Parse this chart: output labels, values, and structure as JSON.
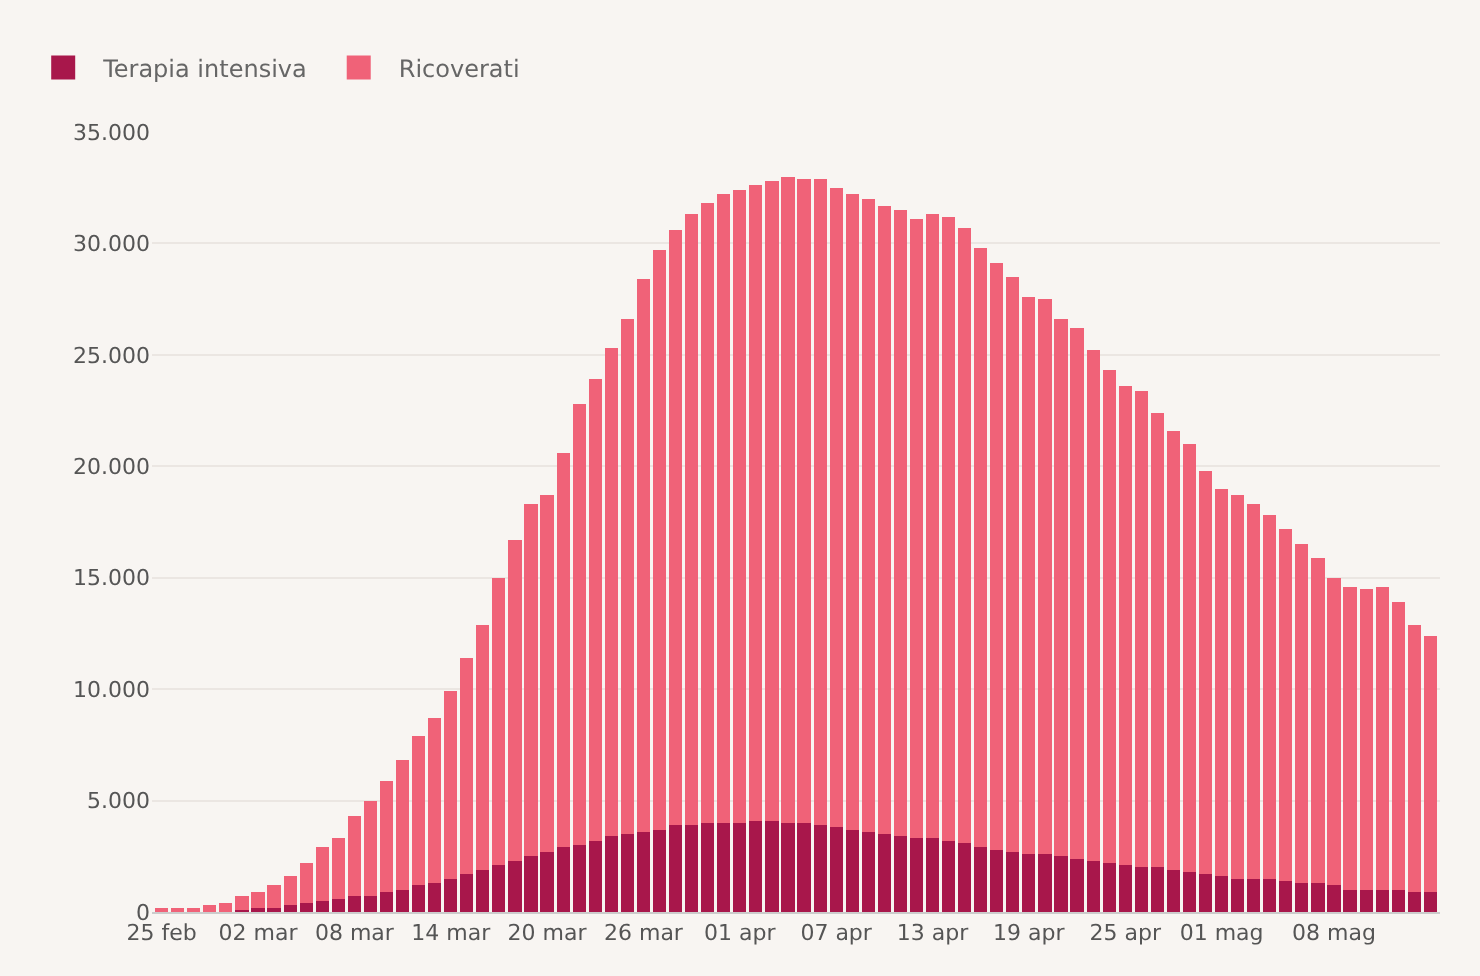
{
  "chart_data": {
    "type": "bar",
    "stacked": true,
    "categories": [
      "25 feb",
      null,
      null,
      null,
      null,
      null,
      "02 mar",
      null,
      null,
      null,
      null,
      null,
      "08 mar",
      null,
      null,
      null,
      null,
      null,
      "14 mar",
      null,
      null,
      null,
      null,
      null,
      "20 mar",
      null,
      null,
      null,
      null,
      null,
      "26 mar",
      null,
      null,
      null,
      null,
      null,
      "01 apr",
      null,
      null,
      null,
      null,
      null,
      "07 apr",
      null,
      null,
      null,
      null,
      null,
      "13 apr",
      null,
      null,
      null,
      null,
      null,
      "19 apr",
      null,
      null,
      null,
      null,
      null,
      "25 apr",
      null,
      null,
      null,
      null,
      null,
      "01 mag",
      null,
      null,
      null,
      null,
      null,
      null,
      "08 mag",
      null,
      null,
      null,
      null,
      null,
      null
    ],
    "series": [
      {
        "name": "Terapia intensiva",
        "color": "#a8174b",
        "values": [
          null,
          null,
          null,
          null,
          null,
          100,
          200,
          200,
          300,
          400,
          500,
          600,
          700,
          700,
          900,
          1000,
          1200,
          1300,
          1500,
          1700,
          1900,
          2100,
          2300,
          2500,
          2700,
          2900,
          3000,
          3200,
          3400,
          3500,
          3600,
          3700,
          3900,
          3900,
          4000,
          4000,
          4000,
          4100,
          4100,
          4000,
          4000,
          3900,
          3800,
          3700,
          3600,
          3500,
          3400,
          3300,
          3300,
          3200,
          3100,
          2900,
          2800,
          2700,
          2600,
          2600,
          2500,
          2400,
          2300,
          2200,
          2100,
          2000,
          2000,
          1900,
          1800,
          1700,
          1600,
          1500,
          1500,
          1500,
          1400,
          1300,
          1300,
          1200,
          1000,
          1000,
          1000,
          1000,
          900,
          900
        ]
      },
      {
        "name": "Ricoverati",
        "color": "#f06278",
        "values": [
          100,
          100,
          200,
          300,
          400,
          600,
          700,
          1000,
          1300,
          1800,
          2400,
          2700,
          3600,
          4300,
          5000,
          5800,
          6700,
          7400,
          8400,
          9700,
          11000,
          12900,
          14400,
          15800,
          16000,
          17700,
          19800,
          20700,
          21900,
          23100,
          24800,
          26000,
          26700,
          27400,
          27800,
          28200,
          28400,
          28500,
          28700,
          29000,
          28900,
          29000,
          28700,
          28500,
          28400,
          28200,
          28100,
          27800,
          28000,
          28000,
          27600,
          26900,
          26300,
          25800,
          25000,
          24900,
          24100,
          23800,
          22900,
          22100,
          21500,
          21400,
          20400,
          19700,
          19200,
          18100,
          17400,
          17200,
          16800,
          16300,
          15800,
          15200,
          14600,
          13800,
          13600,
          13500,
          13600,
          12900,
          12000,
          11500
        ]
      }
    ],
    "ylim": [
      0,
      35000
    ],
    "yticks": [
      {
        "value": 0,
        "label": "0"
      },
      {
        "value": 5000,
        "label": "5.000"
      },
      {
        "value": 10000,
        "label": "10.000"
      },
      {
        "value": 15000,
        "label": "15.000"
      },
      {
        "value": 20000,
        "label": "20.000"
      },
      {
        "value": 25000,
        "label": "25.000"
      },
      {
        "value": 30000,
        "label": "30.000"
      },
      {
        "value": 35000,
        "label": "35.000"
      }
    ],
    "grid": "y",
    "legend": "top left"
  }
}
